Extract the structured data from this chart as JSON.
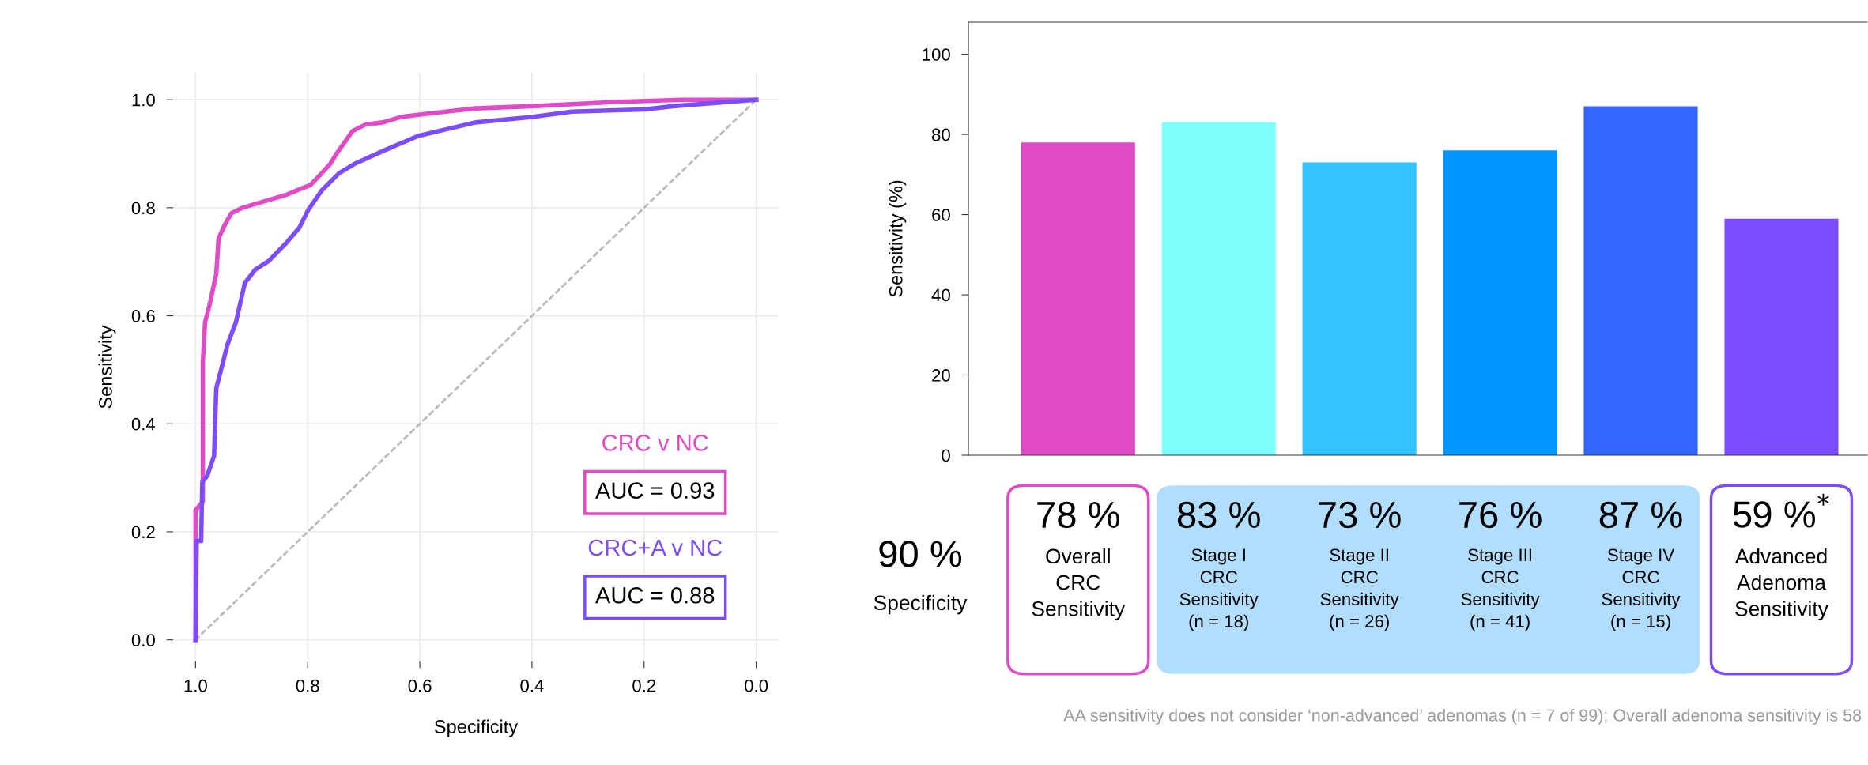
{
  "chart_data": [
    {
      "type": "line",
      "xlabel": "Specificity",
      "ylabel": "Sensitivity",
      "xlim": [
        1.04,
        -0.04
      ],
      "ylim": [
        -0.04,
        1.05
      ],
      "xticks": [
        {
          "value": 1,
          "label": "1.0"
        },
        0.8,
        0.6,
        0.4,
        0.2,
        {
          "value": 0,
          "label": "0.0"
        }
      ],
      "yticks": [
        {
          "value": 0,
          "label": "0.0"
        },
        0.2,
        0.4,
        0.6,
        0.8,
        {
          "value": 1,
          "label": "1.0"
        }
      ],
      "grid": true,
      "legend": "bottom right",
      "series": [
        {
          "name": "CRC v NC",
          "color": "#e04cc8",
          "x": [
            1.0,
            1.0,
            0.987,
            0.987,
            0.983,
            0.975,
            0.963,
            0.959,
            0.948,
            0.936,
            0.916,
            0.877,
            0.838,
            0.815,
            0.795,
            0.775,
            0.76,
            0.748,
            0.72,
            0.697,
            0.666,
            0.634,
            0.603,
            0.501,
            0.4,
            0.251,
            0.133,
            0.0
          ],
          "values": [
            0.0,
            0.24,
            0.256,
            0.515,
            0.588,
            0.62,
            0.678,
            0.743,
            0.768,
            0.79,
            0.8,
            0.812,
            0.824,
            0.834,
            0.842,
            0.864,
            0.881,
            0.901,
            0.942,
            0.954,
            0.958,
            0.968,
            0.972,
            0.984,
            0.988,
            0.996,
            1.0,
            1.0
          ]
        },
        {
          "name": "CRC+A v NC",
          "color": "#7c4dff",
          "x": [
            1.0,
            0.998,
            0.99,
            0.988,
            0.979,
            0.967,
            0.963,
            0.955,
            0.943,
            0.928,
            0.912,
            0.893,
            0.869,
            0.838,
            0.815,
            0.799,
            0.775,
            0.744,
            0.717,
            0.666,
            0.603,
            0.501,
            0.4,
            0.329,
            0.2,
            0.149,
            0.0
          ],
          "values": [
            0.0,
            0.183,
            0.183,
            0.292,
            0.304,
            0.341,
            0.466,
            0.498,
            0.547,
            0.588,
            0.661,
            0.686,
            0.702,
            0.735,
            0.763,
            0.796,
            0.832,
            0.864,
            0.881,
            0.905,
            0.933,
            0.958,
            0.968,
            0.978,
            0.982,
            0.988,
            1.0
          ]
        },
        {
          "color": "#bbbbbb",
          "line_style": "dashed",
          "x": [
            1.0,
            0.0
          ],
          "values": [
            0.0,
            1.0
          ]
        }
      ],
      "annotations": [
        "AUC = 0.93",
        "AUC = 0.88"
      ]
    },
    {
      "type": "bar",
      "ylabel": "Sensitivity (%)",
      "ylim": [
        0,
        108
      ],
      "yticks": [
        0,
        20,
        40,
        60,
        80,
        100
      ],
      "categories": [
        "Overall\nCRC\nSensitivity",
        "Stage I\nCRC\nSensitivity\n(n = 18)",
        "Stage II\nCRC\nSensitivity\n(n = 26)",
        "Stage III\nCRC\nSensitivity\n(n = 41)",
        "Stage IV\nCRC\nSensitivity\n(n = 15)",
        "Advanced\nAdenoma\nSensitivity"
      ],
      "values": [
        78,
        83,
        73,
        76,
        87,
        59
      ],
      "colors": [
        "#e04cc8",
        "#80ffff",
        "#33c4ff",
        "#0096ff",
        "#3366ff",
        "#7c4dff"
      ],
      "value_labels": [
        "78 %",
        "83 %",
        "73 %",
        "76 %",
        "87 %",
        "59 %$^{*}$"
      ],
      "annotations": [
        "90 %\nSpecificity",
        "AA sensitivity does not consider ‘non-advanced’ adenomas (n = 7 of 99); Overall adenoma sensitivity is 58"
      ]
    }
  ]
}
